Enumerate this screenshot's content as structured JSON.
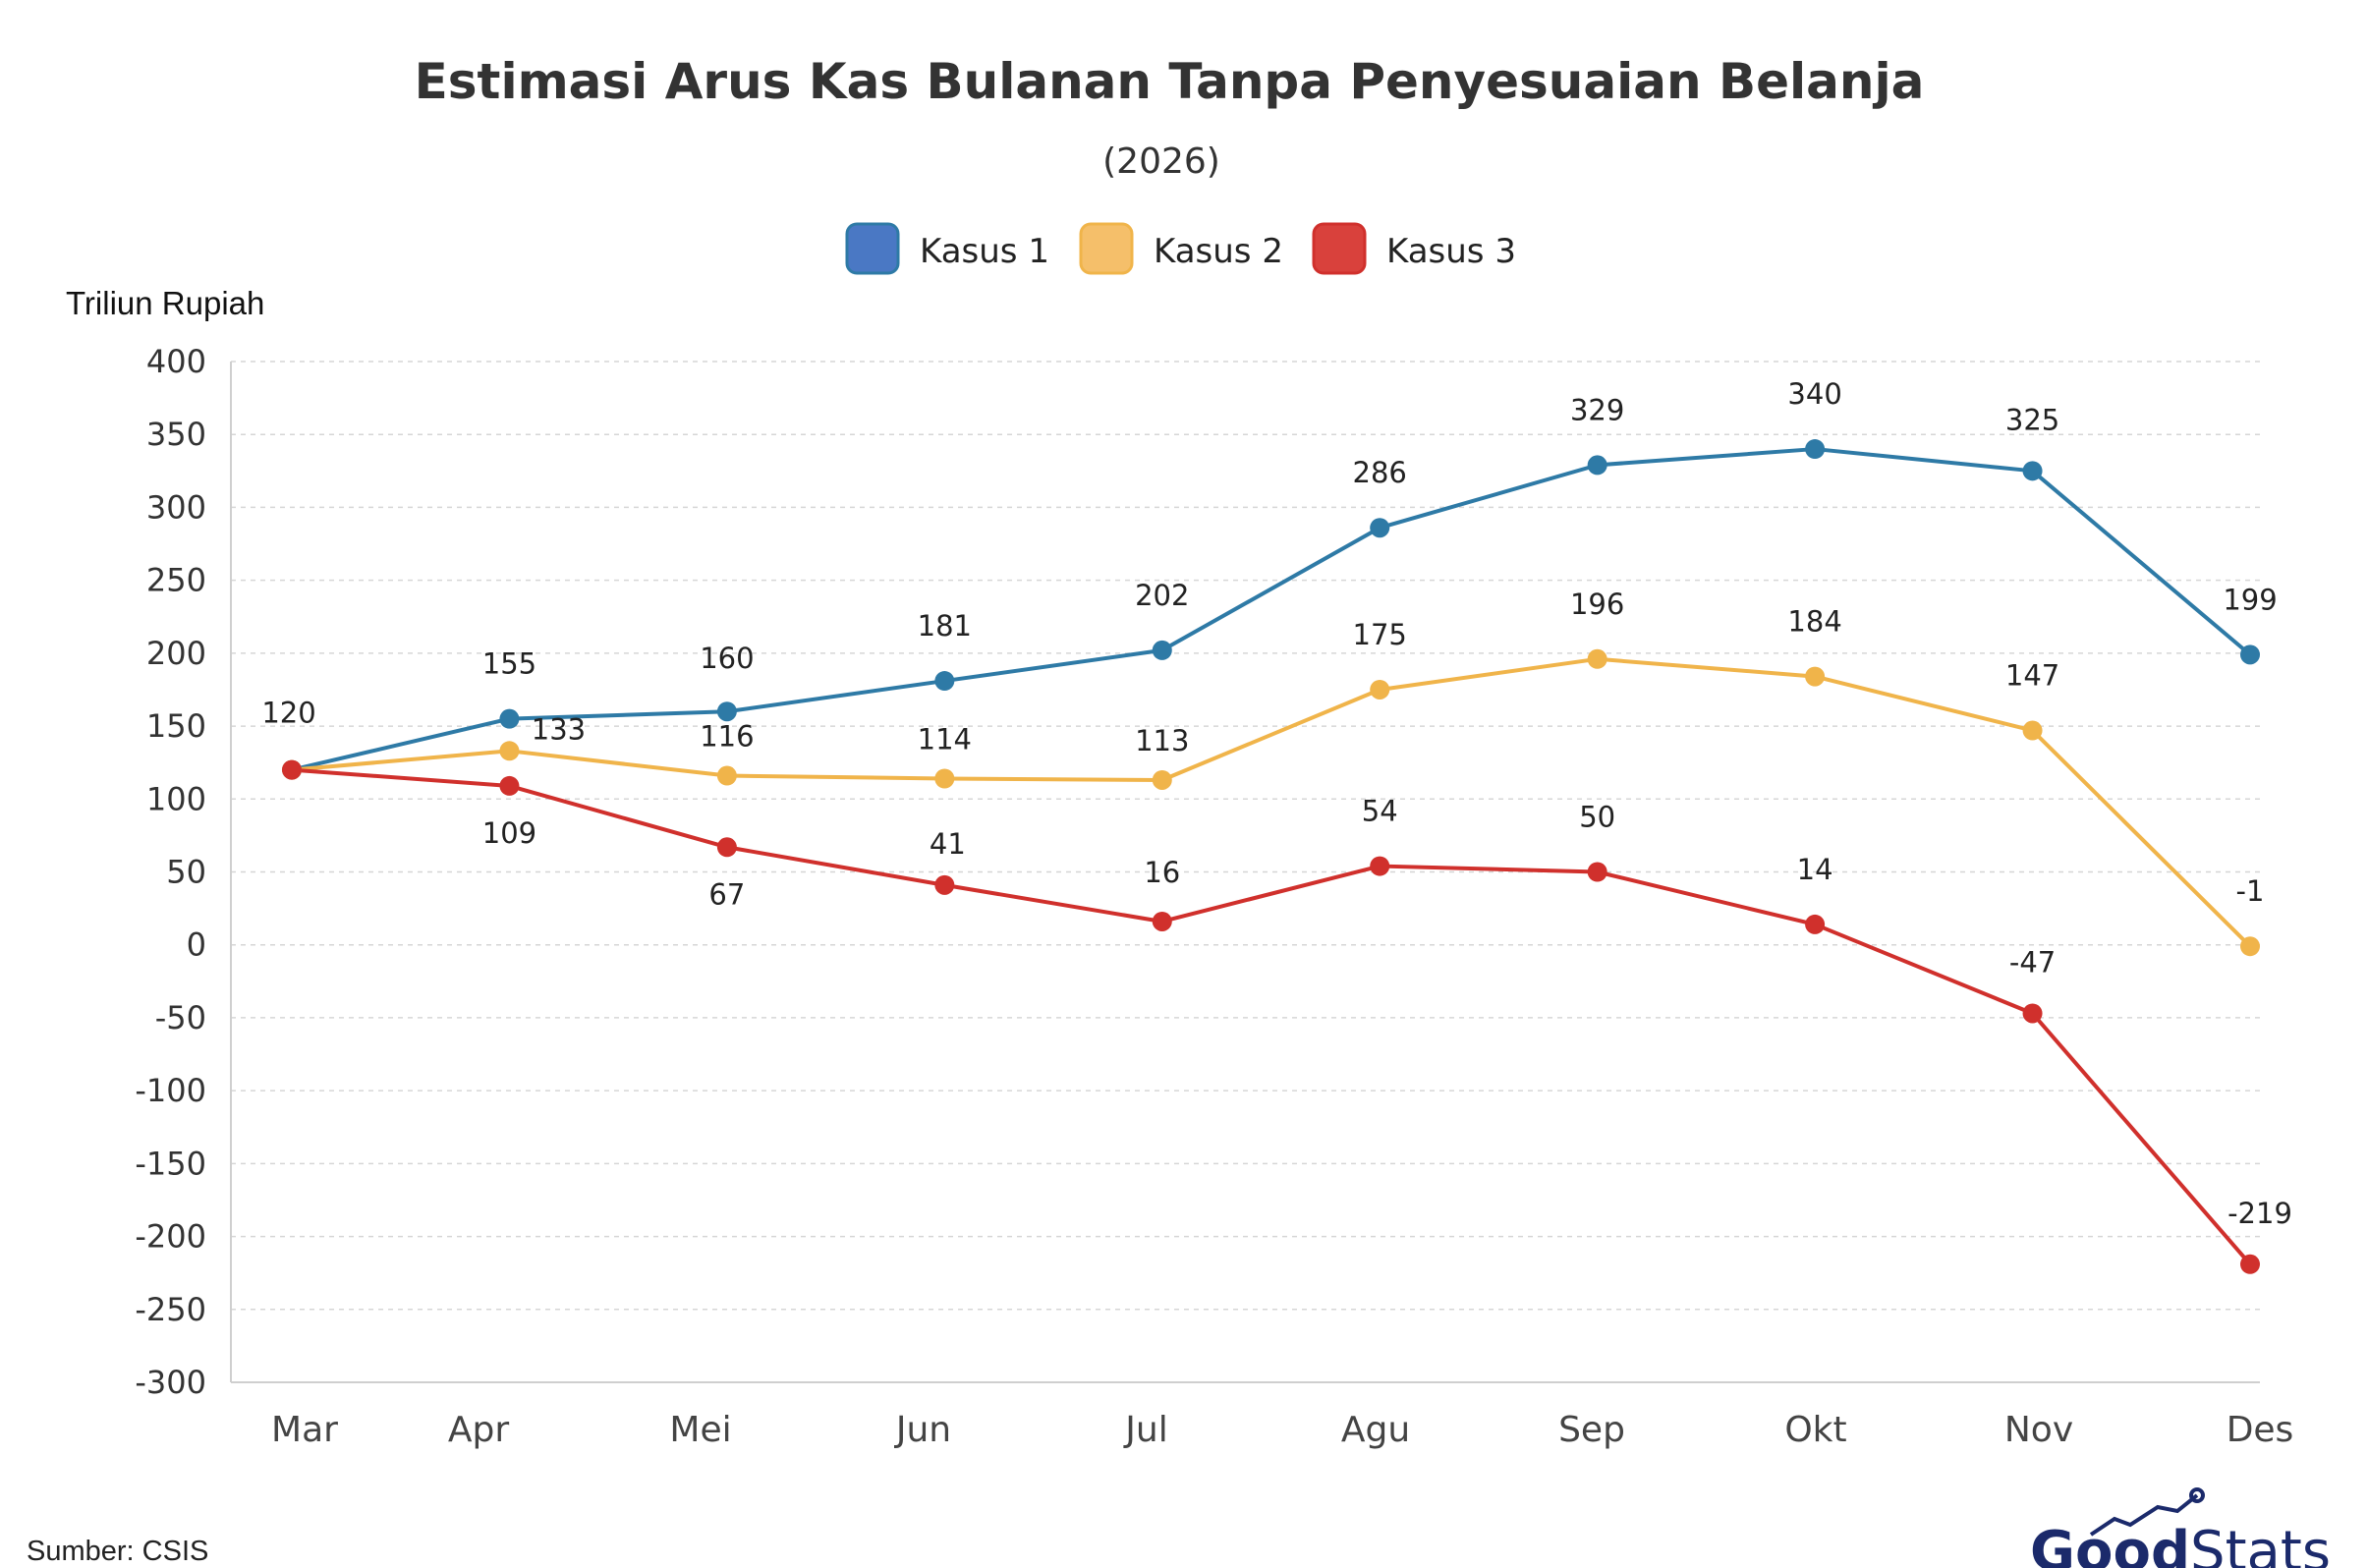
{
  "chart_data": {
    "type": "line",
    "title": "Estimasi Arus Kas Bulanan Tanpa Penyesuaian Belanja",
    "subtitle": "(2026)",
    "ylabel": "Triliun Rupiah",
    "xlabel": "",
    "categories": [
      "Mar",
      "Apr",
      "Mei",
      "Jun",
      "Jul",
      "Agu",
      "Sep",
      "Okt",
      "Nov",
      "Des"
    ],
    "ylim": [
      -300,
      400
    ],
    "yticks": [
      400,
      350,
      300,
      250,
      200,
      150,
      100,
      50,
      0,
      -50,
      -100,
      -150,
      -200,
      -250,
      -300
    ],
    "grid": true,
    "legend_position": "top-center",
    "series": [
      {
        "name": "Kasus 1",
        "color": "#2e7aa6",
        "legend_color": "#4a78c4",
        "values": [
          120,
          155,
          160,
          181,
          202,
          286,
          329,
          340,
          325,
          199
        ],
        "labels": [
          "",
          "155",
          "160",
          "181",
          "202",
          "286",
          "329",
          "340",
          "325",
          "199"
        ]
      },
      {
        "name": "Kasus 2",
        "color": "#f0b44a",
        "legend_color": "#f5bf6a",
        "values": [
          120,
          133,
          116,
          114,
          113,
          175,
          196,
          184,
          147,
          -1
        ],
        "labels": [
          "",
          "133",
          "116",
          "114",
          "113",
          "175",
          "196",
          "184",
          "147",
          "-1"
        ]
      },
      {
        "name": "Kasus 3",
        "color": "#d0302c",
        "legend_color": "#d9413c",
        "values": [
          120,
          109,
          67,
          41,
          16,
          54,
          50,
          14,
          -47,
          -219
        ],
        "labels": [
          "120",
          "109",
          "67",
          "41",
          "16",
          "54",
          "50",
          "14",
          "-47",
          "-219"
        ]
      }
    ],
    "source": "Sumber: CSIS"
  },
  "brand": {
    "part1": "Good",
    "part2": "Stats"
  }
}
